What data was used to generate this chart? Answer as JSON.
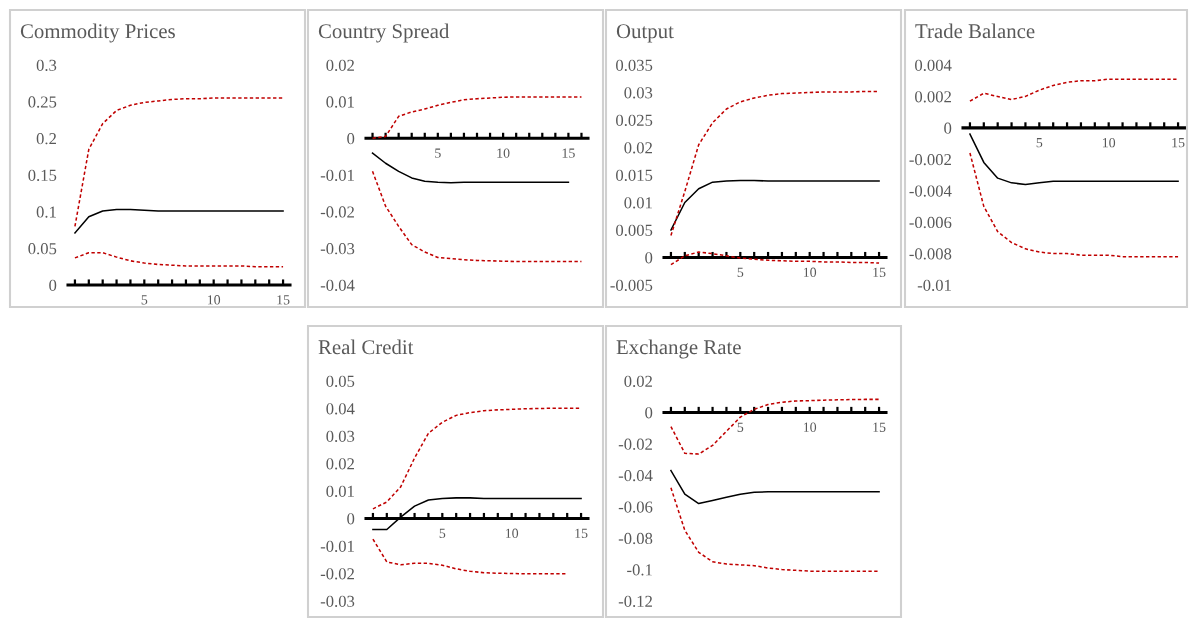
{
  "chart_data": [
    {
      "type": "line",
      "title": "Commodity Prices",
      "x": [
        0,
        1,
        2,
        3,
        4,
        5,
        6,
        7,
        8,
        9,
        10,
        11,
        12,
        13,
        14,
        15
      ],
      "xlim": [
        -0.5,
        15.5
      ],
      "xticks": [
        {
          "value": 0,
          "label": null
        },
        {
          "value": 1,
          "label": null
        },
        {
          "value": 2,
          "label": null
        },
        {
          "value": 3,
          "label": null
        },
        {
          "value": 4,
          "label": null
        },
        5,
        {
          "value": 6,
          "label": null
        },
        {
          "value": 7,
          "label": null
        },
        {
          "value": 8,
          "label": null
        },
        {
          "value": 9,
          "label": null
        },
        10,
        {
          "value": 11,
          "label": null
        },
        {
          "value": 12,
          "label": null
        },
        {
          "value": 13,
          "label": null
        },
        {
          "value": 14,
          "label": null
        },
        15
      ],
      "ylim": [
        0,
        0.3
      ],
      "yticks": [
        0,
        0.05,
        0.1,
        0.15,
        0.2,
        0.25,
        0.3
      ],
      "series": [
        {
          "color": "#000000",
          "line_style": "solid",
          "values": [
            0.071,
            0.093,
            0.101,
            0.103,
            0.103,
            0.102,
            0.101,
            0.101,
            0.101,
            0.101,
            0.101,
            0.101,
            0.101,
            0.101,
            0.101,
            0.101
          ]
        },
        {
          "color": "#c00000",
          "line_style": "dashed",
          "values": [
            0.08,
            0.185,
            0.22,
            0.238,
            0.245,
            0.249,
            0.251,
            0.253,
            0.254,
            0.254,
            0.255,
            0.255,
            0.255,
            0.255,
            0.255,
            0.255
          ]
        },
        {
          "color": "#c00000",
          "line_style": "dashed",
          "values": [
            0.037,
            0.044,
            0.044,
            0.038,
            0.033,
            0.03,
            0.028,
            0.027,
            0.026,
            0.026,
            0.026,
            0.026,
            0.026,
            0.025,
            0.025,
            0.025
          ]
        }
      ]
    },
    {
      "type": "line",
      "title": "Country Spread",
      "x": [
        0,
        1,
        2,
        3,
        4,
        5,
        6,
        7,
        8,
        9,
        10,
        11,
        12,
        13,
        14,
        15
      ],
      "xlim": [
        -0.5,
        16.5
      ],
      "xticks": [
        {
          "value": 0,
          "label": null
        },
        {
          "value": 1,
          "label": null
        },
        {
          "value": 2,
          "label": null
        },
        {
          "value": 3,
          "label": null
        },
        {
          "value": 4,
          "label": null
        },
        5,
        {
          "value": 6,
          "label": null
        },
        {
          "value": 7,
          "label": null
        },
        {
          "value": 8,
          "label": null
        },
        {
          "value": 9,
          "label": null
        },
        10,
        {
          "value": 11,
          "label": null
        },
        {
          "value": 12,
          "label": null
        },
        {
          "value": 13,
          "label": null
        },
        {
          "value": 14,
          "label": null
        },
        15,
        {
          "value": 16,
          "label": null
        }
      ],
      "ylim": [
        -0.04,
        0.02
      ],
      "yticks": [
        -0.04,
        -0.03,
        -0.02,
        -0.01,
        0,
        0.01,
        0.02
      ],
      "series": [
        {
          "color": "#000000",
          "line_style": "solid",
          "values": [
            -0.004,
            -0.0068,
            -0.009,
            -0.0108,
            -0.0117,
            -0.012,
            -0.0121,
            -0.012,
            -0.012,
            -0.012,
            -0.012,
            -0.012,
            -0.012,
            -0.012,
            -0.012,
            -0.012
          ]
        },
        {
          "color": "#c00000",
          "line_style": "dashed",
          "x": [
            0,
            1,
            2,
            3,
            4,
            5,
            6,
            7,
            8,
            9,
            10,
            11,
            12,
            13,
            14,
            15,
            16
          ],
          "values": [
            0,
            0.0005,
            0.006,
            0.0072,
            0.008,
            0.009,
            0.0098,
            0.0105,
            0.0108,
            0.011,
            0.0112,
            0.0113,
            0.0113,
            0.0113,
            0.0113,
            0.0113,
            0.0113
          ]
        },
        {
          "color": "#c00000",
          "line_style": "dashed",
          "x": [
            0,
            1,
            2,
            3,
            4,
            5,
            6,
            7,
            8,
            9,
            10,
            11,
            12,
            13,
            14,
            15,
            16
          ],
          "values": [
            -0.009,
            -0.0185,
            -0.024,
            -0.029,
            -0.031,
            -0.0325,
            -0.0328,
            -0.0331,
            -0.0333,
            -0.0334,
            -0.0335,
            -0.0336,
            -0.0336,
            -0.0336,
            -0.0336,
            -0.0336,
            -0.0336
          ]
        }
      ]
    },
    {
      "type": "line",
      "title": "Output",
      "x": [
        0,
        1,
        2,
        3,
        4,
        5,
        6,
        7,
        8,
        9,
        10,
        11,
        12,
        13,
        14,
        15
      ],
      "xlim": [
        -0.5,
        15.5
      ],
      "xticks": [
        {
          "value": 0,
          "label": null
        },
        {
          "value": 1,
          "label": null
        },
        {
          "value": 2,
          "label": null
        },
        {
          "value": 3,
          "label": null
        },
        {
          "value": 4,
          "label": null
        },
        5,
        {
          "value": 6,
          "label": null
        },
        {
          "value": 7,
          "label": null
        },
        {
          "value": 8,
          "label": null
        },
        {
          "value": 9,
          "label": null
        },
        10,
        {
          "value": 11,
          "label": null
        },
        {
          "value": 12,
          "label": null
        },
        {
          "value": 13,
          "label": null
        },
        {
          "value": 14,
          "label": null
        },
        15
      ],
      "ylim": [
        -0.005,
        0.035
      ],
      "yticks": [
        -0.005,
        0,
        0.005,
        0.01,
        0.015,
        0.02,
        0.025,
        0.03,
        0.035
      ],
      "series": [
        {
          "color": "#000000",
          "line_style": "solid",
          "values": [
            0.005,
            0.01,
            0.0125,
            0.0137,
            0.0139,
            0.014,
            0.014,
            0.0139,
            0.0139,
            0.0139,
            0.0139,
            0.0139,
            0.0139,
            0.0139,
            0.0139,
            0.0139
          ]
        },
        {
          "color": "#c00000",
          "line_style": "dashed",
          "values": [
            0.004,
            0.012,
            0.0205,
            0.0245,
            0.027,
            0.0283,
            0.029,
            0.0295,
            0.0298,
            0.0299,
            0.03,
            0.0301,
            0.0301,
            0.0301,
            0.0302,
            0.0302
          ]
        },
        {
          "color": "#c00000",
          "line_style": "dashed",
          "values": [
            -0.0013,
            0.0003,
            0.001,
            0.0007,
            0.0003,
            -0.0001,
            -0.0003,
            -0.0005,
            -0.0006,
            -0.0007,
            -0.0007,
            -0.0008,
            -0.0008,
            -0.0009,
            -0.0009,
            -0.001
          ]
        }
      ]
    },
    {
      "type": "line",
      "title": "Trade Balance",
      "x": [
        0,
        1,
        2,
        3,
        4,
        5,
        6,
        7,
        8,
        9,
        10,
        11,
        12,
        13,
        14,
        15
      ],
      "xlim": [
        -0.5,
        15.5
      ],
      "xticks": [
        {
          "value": 0,
          "label": null
        },
        {
          "value": 1,
          "label": null
        },
        {
          "value": 2,
          "label": null
        },
        {
          "value": 3,
          "label": null
        },
        {
          "value": 4,
          "label": null
        },
        5,
        {
          "value": 6,
          "label": null
        },
        {
          "value": 7,
          "label": null
        },
        {
          "value": 8,
          "label": null
        },
        {
          "value": 9,
          "label": null
        },
        10,
        {
          "value": 11,
          "label": null
        },
        {
          "value": 12,
          "label": null
        },
        {
          "value": 13,
          "label": null
        },
        {
          "value": 14,
          "label": null
        },
        15
      ],
      "ylim": [
        -0.01,
        0.004
      ],
      "yticks": [
        -0.01,
        -0.008,
        -0.006,
        -0.004,
        -0.002,
        0,
        0.002,
        0.004
      ],
      "series": [
        {
          "color": "#000000",
          "line_style": "solid",
          "values": [
            -0.0004,
            -0.0022,
            -0.0032,
            -0.0035,
            -0.0036,
            -0.0035,
            -0.0034,
            -0.0034,
            -0.0034,
            -0.0034,
            -0.0034,
            -0.0034,
            -0.0034,
            -0.0034,
            -0.0034,
            -0.0034
          ]
        },
        {
          "color": "#c00000",
          "line_style": "dashed",
          "values": [
            0.0017,
            0.0022,
            0.002,
            0.0018,
            0.002,
            0.0024,
            0.0027,
            0.0029,
            0.003,
            0.003,
            0.0031,
            0.0031,
            0.0031,
            0.0031,
            0.0031,
            0.0031
          ]
        },
        {
          "color": "#c00000",
          "line_style": "dashed",
          "values": [
            -0.0016,
            -0.005,
            -0.0066,
            -0.0073,
            -0.0077,
            -0.0079,
            -0.008,
            -0.008,
            -0.0081,
            -0.0081,
            -0.0081,
            -0.0082,
            -0.0082,
            -0.0082,
            -0.0082,
            -0.0082
          ]
        }
      ]
    },
    {
      "type": "line",
      "title": "Real Credit",
      "x": [
        0,
        1,
        2,
        3,
        4,
        5,
        6,
        7,
        8,
        9,
        10,
        11,
        12,
        13,
        14,
        15
      ],
      "xlim": [
        -0.5,
        15.5
      ],
      "xticks": [
        {
          "value": 0,
          "label": null
        },
        {
          "value": 1,
          "label": null
        },
        {
          "value": 2,
          "label": null
        },
        {
          "value": 3,
          "label": null
        },
        {
          "value": 4,
          "label": null
        },
        5,
        {
          "value": 6,
          "label": null
        },
        {
          "value": 7,
          "label": null
        },
        {
          "value": 8,
          "label": null
        },
        {
          "value": 9,
          "label": null
        },
        10,
        {
          "value": 11,
          "label": null
        },
        {
          "value": 12,
          "label": null
        },
        {
          "value": 13,
          "label": null
        },
        {
          "value": 14,
          "label": null
        },
        15
      ],
      "ylim": [
        -0.03,
        0.05
      ],
      "yticks": [
        -0.03,
        -0.02,
        -0.01,
        0,
        0.01,
        0.02,
        0.03,
        0.04,
        0.05
      ],
      "series": [
        {
          "color": "#000000",
          "line_style": "solid",
          "values": [
            -0.004,
            -0.004,
            0.0005,
            0.0045,
            0.0067,
            0.0073,
            0.0075,
            0.0075,
            0.0073,
            0.0073,
            0.0073,
            0.0073,
            0.0073,
            0.0073,
            0.0073,
            0.0073
          ]
        },
        {
          "color": "#c00000",
          "line_style": "dashed",
          "values": [
            0.0035,
            0.006,
            0.0115,
            0.022,
            0.031,
            0.035,
            0.0375,
            0.0385,
            0.0392,
            0.0395,
            0.0397,
            0.0399,
            0.04,
            0.0401,
            0.0401,
            0.0401
          ]
        },
        {
          "color": "#c00000",
          "line_style": "dashed",
          "x": [
            0,
            1,
            2,
            3,
            4,
            5,
            6,
            7,
            8,
            9,
            10,
            11,
            12,
            13,
            14
          ],
          "values": [
            -0.0075,
            -0.0158,
            -0.0168,
            -0.0163,
            -0.0163,
            -0.017,
            -0.0183,
            -0.0192,
            -0.0197,
            -0.0199,
            -0.02,
            -0.0201,
            -0.0201,
            -0.0201,
            -0.0201
          ]
        }
      ]
    },
    {
      "type": "line",
      "title": "Exchange Rate",
      "x": [
        0,
        1,
        2,
        3,
        4,
        5,
        6,
        7,
        8,
        9,
        10,
        11,
        12,
        13,
        14,
        15
      ],
      "xlim": [
        -0.5,
        15.5
      ],
      "xticks": [
        {
          "value": 0,
          "label": null
        },
        {
          "value": 1,
          "label": null
        },
        {
          "value": 2,
          "label": null
        },
        {
          "value": 3,
          "label": null
        },
        {
          "value": 4,
          "label": null
        },
        5,
        {
          "value": 6,
          "label": null
        },
        {
          "value": 7,
          "label": null
        },
        {
          "value": 8,
          "label": null
        },
        {
          "value": 9,
          "label": null
        },
        10,
        {
          "value": 11,
          "label": null
        },
        {
          "value": 12,
          "label": null
        },
        {
          "value": 13,
          "label": null
        },
        {
          "value": 14,
          "label": null
        },
        15
      ],
      "ylim": [
        -0.12,
        0.02
      ],
      "yticks": [
        -0.12,
        -0.1,
        -0.08,
        -0.06,
        -0.04,
        -0.02,
        0,
        0.02
      ],
      "series": [
        {
          "color": "#000000",
          "line_style": "solid",
          "values": [
            -0.037,
            -0.052,
            -0.058,
            -0.056,
            -0.054,
            -0.052,
            -0.0508,
            -0.0505,
            -0.0505,
            -0.0505,
            -0.0505,
            -0.0505,
            -0.0505,
            -0.0505,
            -0.0505,
            -0.0505
          ]
        },
        {
          "color": "#c00000",
          "line_style": "dashed",
          "values": [
            -0.009,
            -0.026,
            -0.0265,
            -0.021,
            -0.012,
            -0.003,
            0.002,
            0.005,
            0.0065,
            0.0073,
            0.0075,
            0.0078,
            0.008,
            0.0082,
            0.0083,
            0.0083
          ]
        },
        {
          "color": "#c00000",
          "line_style": "dashed",
          "values": [
            -0.048,
            -0.075,
            -0.089,
            -0.095,
            -0.0965,
            -0.097,
            -0.0975,
            -0.099,
            -0.1,
            -0.1005,
            -0.101,
            -0.101,
            -0.101,
            -0.101,
            -0.101,
            -0.101
          ]
        }
      ]
    }
  ]
}
